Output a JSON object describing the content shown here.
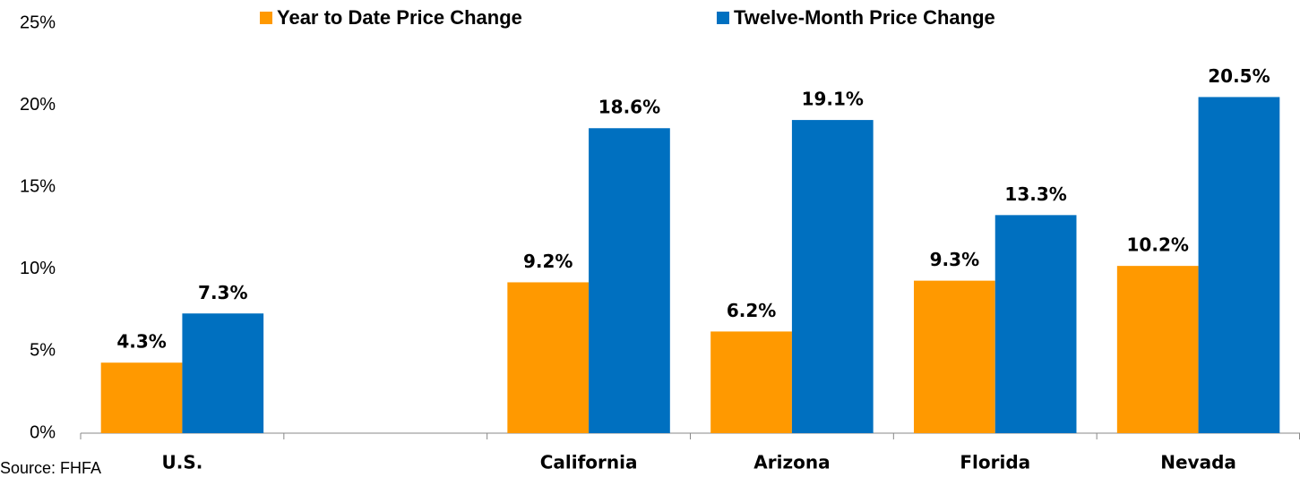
{
  "chart_data": {
    "type": "bar",
    "categories": [
      "U.S.",
      null,
      "California",
      "Arizona",
      "Florida",
      "Nevada"
    ],
    "series": [
      {
        "name": "Year to Date Price Change",
        "color": "#ff9900",
        "values": [
          4.3,
          null,
          9.2,
          6.2,
          9.3,
          10.2
        ],
        "value_labels": [
          "4.3%",
          null,
          "9.2%",
          "6.2%",
          "9.3%",
          "10.2%"
        ]
      },
      {
        "name": "Twelve-Month Price Change",
        "color": "#0070c0",
        "values": [
          7.3,
          null,
          18.6,
          19.1,
          13.3,
          20.5
        ],
        "value_labels": [
          "7.3%",
          null,
          "18.6%",
          "19.1%",
          "13.3%",
          "20.5%"
        ]
      }
    ],
    "ylim": [
      0,
      25
    ],
    "yticks": [
      {
        "value": 0,
        "label": "0%"
      },
      {
        "value": 5,
        "label": "5%"
      },
      {
        "value": 10,
        "label": "10%"
      },
      {
        "value": 15,
        "label": "15%"
      },
      {
        "value": 20,
        "label": "20%"
      },
      {
        "value": 25,
        "label": "25%"
      }
    ],
    "grid": false,
    "source": "Source: FHFA"
  }
}
